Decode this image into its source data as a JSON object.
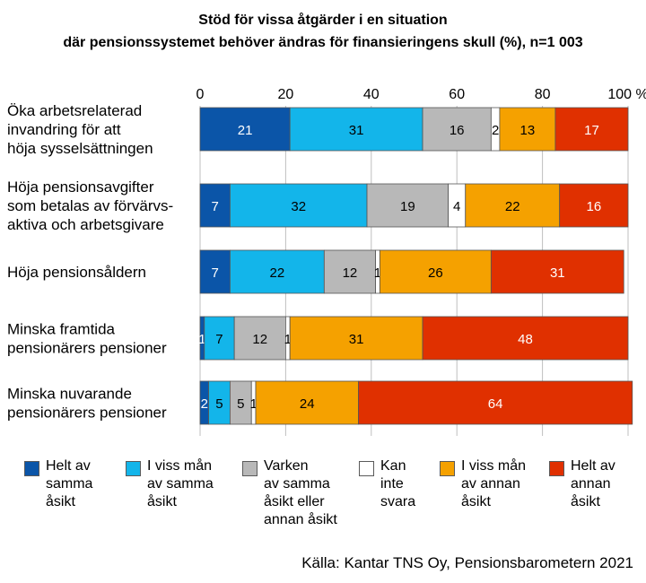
{
  "title_lines": [
    "Stöd för vissa åtgärder i en situation",
    "där pensionssystemet behöver ändras för finansieringens skull (%), n=1 003"
  ],
  "source": "Källa: Kantar TNS Oy, Pensionsbarometern 2021",
  "chart_data": {
    "type": "bar",
    "orientation": "horizontal",
    "stacked": true,
    "title": "Stöd för vissa åtgärder i en situation där pensionssystemet behöver ändras för finansieringens skull (%), n=1 003",
    "xlim": [
      0,
      100
    ],
    "x_ticks": [
      "0",
      "20",
      "40",
      "60",
      "80",
      "100 %"
    ],
    "x_tick_values": [
      0,
      20,
      40,
      60,
      80,
      100
    ],
    "grid": true,
    "legend_position": "bottom",
    "categories": [
      [
        "Öka arbetsrelaterad",
        "invandring för att",
        "höja sysselsättningen"
      ],
      [
        "Höja pensionsavgifter",
        "som betalas av förvärvs-",
        "aktiva och arbetsgivare"
      ],
      [
        "Höja pensionsåldern"
      ],
      [
        "Minska framtida",
        "pensionärers pensioner"
      ],
      [
        "Minska nuvarande",
        "pensionärers pensioner"
      ]
    ],
    "series": [
      {
        "name": [
          "Helt av",
          "samma",
          "åsikt"
        ],
        "color": "#0b55a8",
        "text_color": "#ffffff",
        "values": [
          21,
          7,
          7,
          1,
          2
        ]
      },
      {
        "name": [
          "I viss mån",
          "av samma",
          "åsikt"
        ],
        "color": "#13b5ea",
        "text_color": "#000000",
        "values": [
          31,
          32,
          22,
          7,
          5
        ]
      },
      {
        "name": [
          "Varken",
          "av samma",
          "åsikt eller",
          "annan åsikt"
        ],
        "color": "#b8b8b8",
        "text_color": "#000000",
        "values": [
          16,
          19,
          12,
          12,
          5
        ]
      },
      {
        "name": [
          "Kan",
          "inte",
          "svara"
        ],
        "color": "#ffffff",
        "text_color": "#000000",
        "values": [
          2,
          4,
          1,
          1,
          1
        ]
      },
      {
        "name": [
          "I viss mån",
          "av annan",
          "åsikt"
        ],
        "color": "#f5a100",
        "text_color": "#000000",
        "values": [
          13,
          22,
          26,
          31,
          24
        ]
      },
      {
        "name": [
          "Helt av",
          "annan",
          "åsikt"
        ],
        "color": "#e03000",
        "text_color": "#ffffff",
        "values": [
          17,
          16,
          31,
          48,
          64
        ]
      }
    ]
  }
}
